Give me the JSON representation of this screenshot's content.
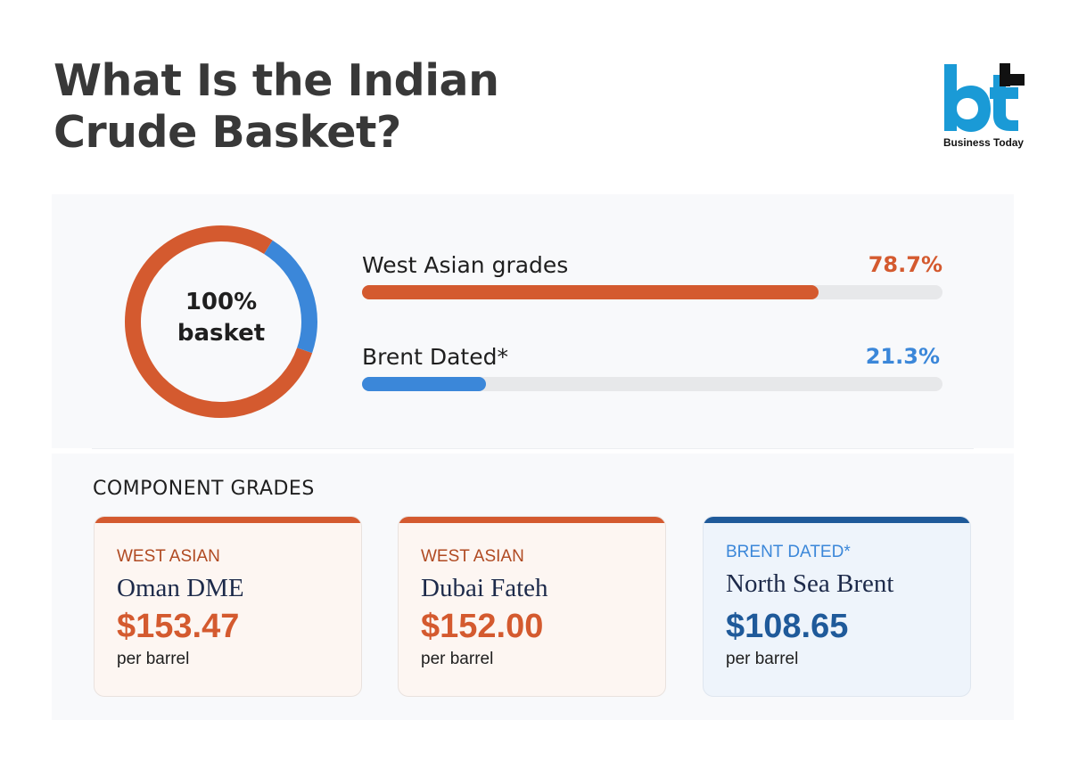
{
  "title_lines": [
    "What Is the Indian",
    "Crude Basket?"
  ],
  "logo": {
    "text": "Business Today",
    "colors": {
      "blue": "#1a9ad6",
      "black": "#111111"
    }
  },
  "colors": {
    "orange": "#d45a2f",
    "blue": "#3b87d9",
    "dark_blue": "#1f5a9a",
    "track": "#e7e8ea"
  },
  "chart_data": {
    "type": "bar",
    "donut_center": [
      "100%",
      "basket"
    ],
    "categories": [
      "West Asian grades",
      "Brent Dated*"
    ],
    "values": [
      78.7,
      21.3
    ],
    "value_labels": [
      "78.7%",
      "21.3%"
    ],
    "colors": [
      "#d45a2f",
      "#3b87d9"
    ],
    "ylim": [
      0,
      100
    ]
  },
  "section_heading": "COMPONENT GRADES",
  "cards": [
    {
      "category": "WEST ASIAN",
      "name": "Oman DME",
      "price": "$153.47",
      "unit": "per barrel"
    },
    {
      "category": "WEST ASIAN",
      "name": "Dubai Fateh",
      "price": "$152.00",
      "unit": "per barrel"
    },
    {
      "category": "BRENT DATED*",
      "name": "North Sea Brent",
      "price": "$108.65",
      "unit": "per barrel"
    }
  ]
}
